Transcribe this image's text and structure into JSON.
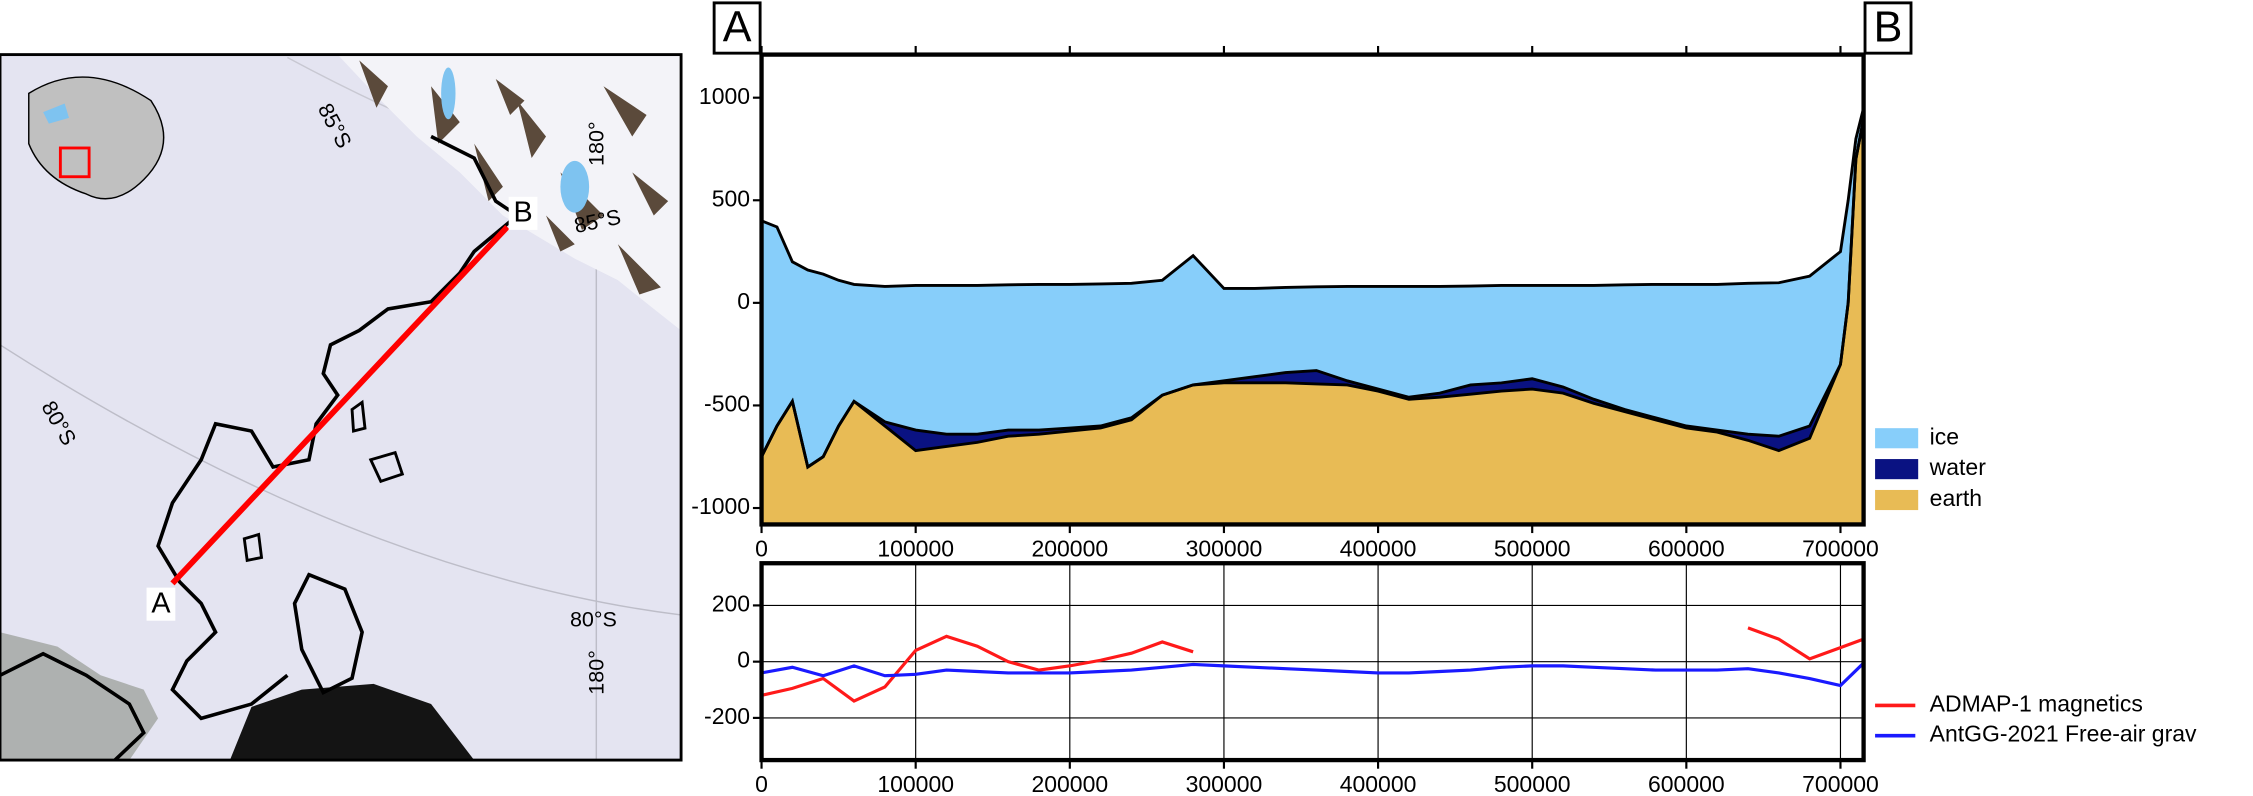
{
  "map": {
    "graticule_labels": [
      "85°S",
      "180°",
      "85°S",
      "80°S",
      "80°S",
      "180°"
    ],
    "endpoints": [
      "A",
      "B"
    ]
  },
  "chart_data": [
    {
      "type": "area",
      "section_labels": [
        "A",
        "B"
      ],
      "x": [
        0,
        10000,
        20000,
        30000,
        40000,
        50000,
        60000,
        80000,
        100000,
        120000,
        140000,
        160000,
        180000,
        200000,
        220000,
        240000,
        260000,
        280000,
        300000,
        320000,
        340000,
        360000,
        380000,
        400000,
        420000,
        440000,
        460000,
        480000,
        500000,
        520000,
        540000,
        560000,
        580000,
        600000,
        620000,
        640000,
        660000,
        680000,
        700000,
        705000,
        710000,
        715000
      ],
      "series": [
        {
          "name": "ice",
          "color": "#87cefa",
          "values": [
            400,
            370,
            200,
            160,
            140,
            110,
            90,
            80,
            85,
            85,
            85,
            88,
            90,
            90,
            92,
            95,
            110,
            230,
            70,
            70,
            75,
            78,
            80,
            80,
            80,
            80,
            82,
            85,
            85,
            85,
            85,
            88,
            90,
            90,
            90,
            95,
            98,
            130,
            250,
            500,
            800,
            950
          ]
        },
        {
          "name": "water",
          "color": "#0a1282",
          "values": [
            -750,
            -600,
            -480,
            -800,
            -750,
            -600,
            -480,
            -580,
            -620,
            -640,
            -640,
            -620,
            -620,
            -610,
            -600,
            -560,
            -450,
            -400,
            -380,
            -360,
            -340,
            -330,
            -380,
            -420,
            -460,
            -440,
            -400,
            -390,
            -370,
            -410,
            -470,
            -520,
            -560,
            -600,
            -620,
            -640,
            -650,
            -600,
            -300,
            0,
            700,
            900
          ]
        },
        {
          "name": "earth",
          "color": "#e8bb55",
          "values": [
            -750,
            -600,
            -480,
            -800,
            -750,
            -600,
            -480,
            -600,
            -720,
            -700,
            -680,
            -650,
            -640,
            -625,
            -610,
            -570,
            -450,
            -400,
            -390,
            -390,
            -390,
            -395,
            -400,
            -430,
            -470,
            -460,
            -445,
            -430,
            -420,
            -440,
            -490,
            -530,
            -570,
            -610,
            -630,
            -670,
            -720,
            -660,
            -300,
            0,
            700,
            900
          ]
        }
      ],
      "xlim": [
        0,
        715000
      ],
      "xticks": [
        0,
        100000,
        200000,
        300000,
        400000,
        500000,
        600000,
        700000
      ],
      "ylim": [
        -1080,
        1210
      ],
      "yticks": [
        -1000,
        -500,
        0,
        500,
        1000
      ]
    },
    {
      "type": "line",
      "grid": true,
      "x": [
        0,
        20000,
        40000,
        60000,
        80000,
        100000,
        120000,
        140000,
        160000,
        180000,
        200000,
        220000,
        240000,
        260000,
        280000,
        300000,
        320000,
        340000,
        360000,
        380000,
        400000,
        420000,
        440000,
        460000,
        480000,
        500000,
        520000,
        540000,
        560000,
        580000,
        600000,
        620000,
        640000,
        660000,
        680000,
        700000,
        715000
      ],
      "series": [
        {
          "name": "ADMAP-1 magnetics",
          "color": "#ff1a1a",
          "values": [
            -120,
            -95,
            -60,
            -140,
            -90,
            40,
            90,
            55,
            0,
            -30,
            -15,
            5,
            30,
            70,
            35,
            null,
            null,
            null,
            null,
            null,
            null,
            null,
            null,
            null,
            null,
            null,
            null,
            null,
            null,
            null,
            null,
            null,
            120,
            80,
            10,
            50,
            80
          ]
        },
        {
          "name": "AntGG-2021 Free-air grav",
          "color": "#1a1aff",
          "values": [
            -40,
            -20,
            -50,
            -15,
            -50,
            -45,
            -30,
            -35,
            -40,
            -40,
            -40,
            -35,
            -30,
            -20,
            -10,
            -15,
            -20,
            -25,
            -30,
            -35,
            -40,
            -40,
            -35,
            -30,
            -20,
            -15,
            -15,
            -20,
            -25,
            -30,
            -30,
            -30,
            -25,
            -40,
            -60,
            -85,
            -5
          ]
        }
      ],
      "xlim": [
        0,
        715000
      ],
      "xticks": [
        0,
        100000,
        200000,
        300000,
        400000,
        500000,
        600000,
        700000
      ],
      "ylim": [
        -350,
        350
      ],
      "yticks": [
        -200,
        0,
        200
      ]
    }
  ]
}
